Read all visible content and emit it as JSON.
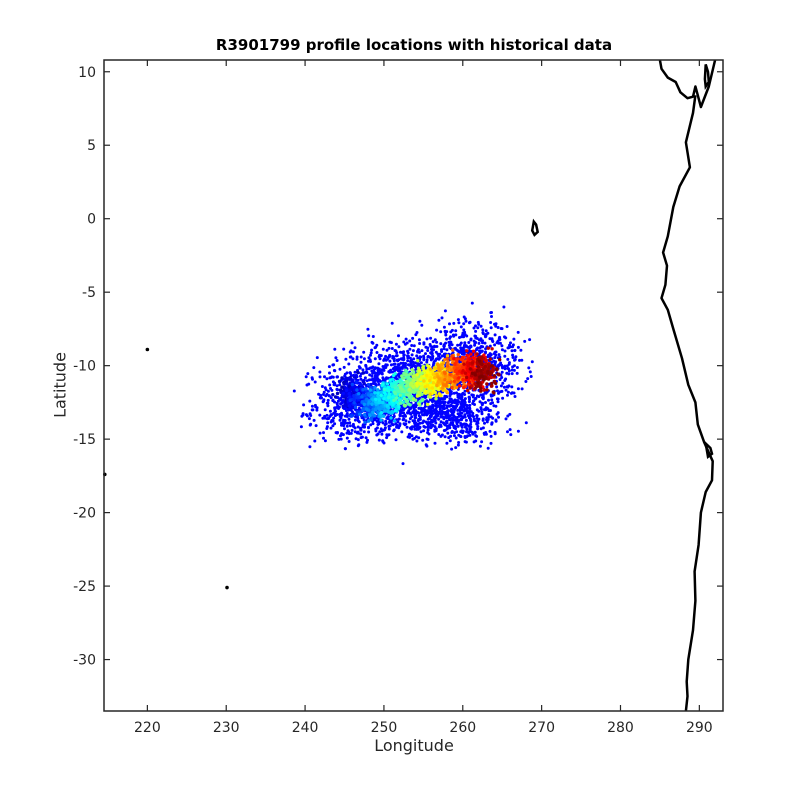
{
  "chart_data": {
    "type": "scatter",
    "title": "R3901799 profile locations with historical data",
    "xlabel": "Longitude",
    "ylabel": "Latitude",
    "xlim": [
      214.5,
      293
    ],
    "ylim": [
      -33.5,
      10.8
    ],
    "xticks": [
      220,
      230,
      240,
      250,
      260,
      270,
      280,
      290
    ],
    "yticks": [
      10,
      5,
      0,
      -5,
      -10,
      -15,
      -20,
      -25,
      -30
    ],
    "xtick_labels": [
      "220",
      "230",
      "240",
      "250",
      "260",
      "270",
      "280",
      "290"
    ],
    "ytick_labels": [
      "10",
      "5",
      "0",
      "-5",
      "-10",
      "-15",
      "-20",
      "-25",
      "-30"
    ],
    "grid": false,
    "series": [
      {
        "role": "historical",
        "color": "#0000ff",
        "regions": [
          {
            "center": [
              254,
              -11.5
            ],
            "spread": [
              7.5,
              2.8
            ],
            "n": 1400
          },
          {
            "center": [
              246,
              -12.5
            ],
            "spread": [
              5,
              2.5
            ],
            "n": 500
          },
          {
            "center": [
              262,
              -9.5
            ],
            "spread": [
              5,
              2.5
            ],
            "n": 500
          },
          {
            "center": [
              259,
              -13.5
            ],
            "spread": [
              6,
              1.6
            ],
            "n": 350
          }
        ]
      },
      {
        "role": "float-profiles",
        "colormap": "jet",
        "track": [
          {
            "lon": 245.2,
            "lat": -11.6
          },
          {
            "lon": 247.5,
            "lat": -12.5
          },
          {
            "lon": 249.8,
            "lat": -12.6
          },
          {
            "lon": 252.2,
            "lat": -11.6
          },
          {
            "lon": 254.5,
            "lat": -11.3
          },
          {
            "lon": 256.8,
            "lat": -11.0
          },
          {
            "lon": 259.2,
            "lat": -10.4
          },
          {
            "lon": 261.6,
            "lat": -10.3
          },
          {
            "lon": 263.0,
            "lat": -10.6
          }
        ]
      }
    ],
    "coastline": {
      "color": "#000000",
      "americas": [
        [
          285,
          10.8
        ],
        [
          285.2,
          10.2
        ],
        [
          286,
          9.6
        ],
        [
          287,
          9.3
        ],
        [
          287.6,
          8.6
        ],
        [
          288.5,
          8.2
        ],
        [
          289.2,
          8.3
        ],
        [
          289.5,
          9.0
        ],
        [
          289.8,
          8.4
        ],
        [
          290.2,
          7.6
        ],
        [
          291.2,
          9.0
        ],
        [
          292,
          10.8
        ]
      ],
      "southamerica": [
        [
          289.5,
          8.4
        ],
        [
          289.2,
          7.2
        ],
        [
          288.3,
          5.2
        ],
        [
          288.8,
          3.5
        ],
        [
          287.5,
          2.2
        ],
        [
          286.7,
          0.8
        ],
        [
          286.0,
          -1.2
        ],
        [
          285.4,
          -2.3
        ],
        [
          285.9,
          -3.2
        ],
        [
          285.7,
          -4.5
        ],
        [
          285.2,
          -5.4
        ],
        [
          286.0,
          -6.2
        ],
        [
          286.7,
          -7.5
        ],
        [
          287.8,
          -9.5
        ],
        [
          288.6,
          -11.3
        ],
        [
          289.5,
          -12.5
        ],
        [
          289.8,
          -14.0
        ],
        [
          290.6,
          -15.2
        ],
        [
          291.7,
          -16.5
        ],
        [
          291.6,
          -17.8
        ],
        [
          290.8,
          -18.6
        ],
        [
          290.2,
          -20.0
        ],
        [
          289.9,
          -22.2
        ],
        [
          289.4,
          -24.0
        ],
        [
          289.5,
          -26.0
        ],
        [
          289.2,
          -28.0
        ],
        [
          288.6,
          -30.0
        ],
        [
          288.4,
          -31.5
        ],
        [
          288.5,
          -32.5
        ],
        [
          288.3,
          -33.5
        ]
      ],
      "islands": [
        [
          [
            269.0,
            -0.2
          ],
          [
            269.3,
            -0.4
          ],
          [
            269.5,
            -0.9
          ],
          [
            269.1,
            -1.1
          ],
          [
            268.8,
            -0.8
          ],
          [
            269.0,
            -0.2
          ]
        ],
        [
          [
            290.8,
            -15.3
          ],
          [
            291.4,
            -15.6
          ],
          [
            291.6,
            -16.0
          ],
          [
            291.1,
            -16.2
          ],
          [
            290.8,
            -15.3
          ]
        ],
        [
          [
            290.8,
            9.0
          ],
          [
            291.2,
            9.3
          ],
          [
            291.1,
            10.0
          ],
          [
            290.8,
            10.5
          ],
          [
            290.7,
            9.5
          ],
          [
            290.8,
            9.0
          ]
        ]
      ],
      "dots": [
        [
          220.0,
          -8.9
        ],
        [
          230.1,
          -25.1
        ],
        [
          214.6,
          -17.4
        ]
      ]
    }
  }
}
